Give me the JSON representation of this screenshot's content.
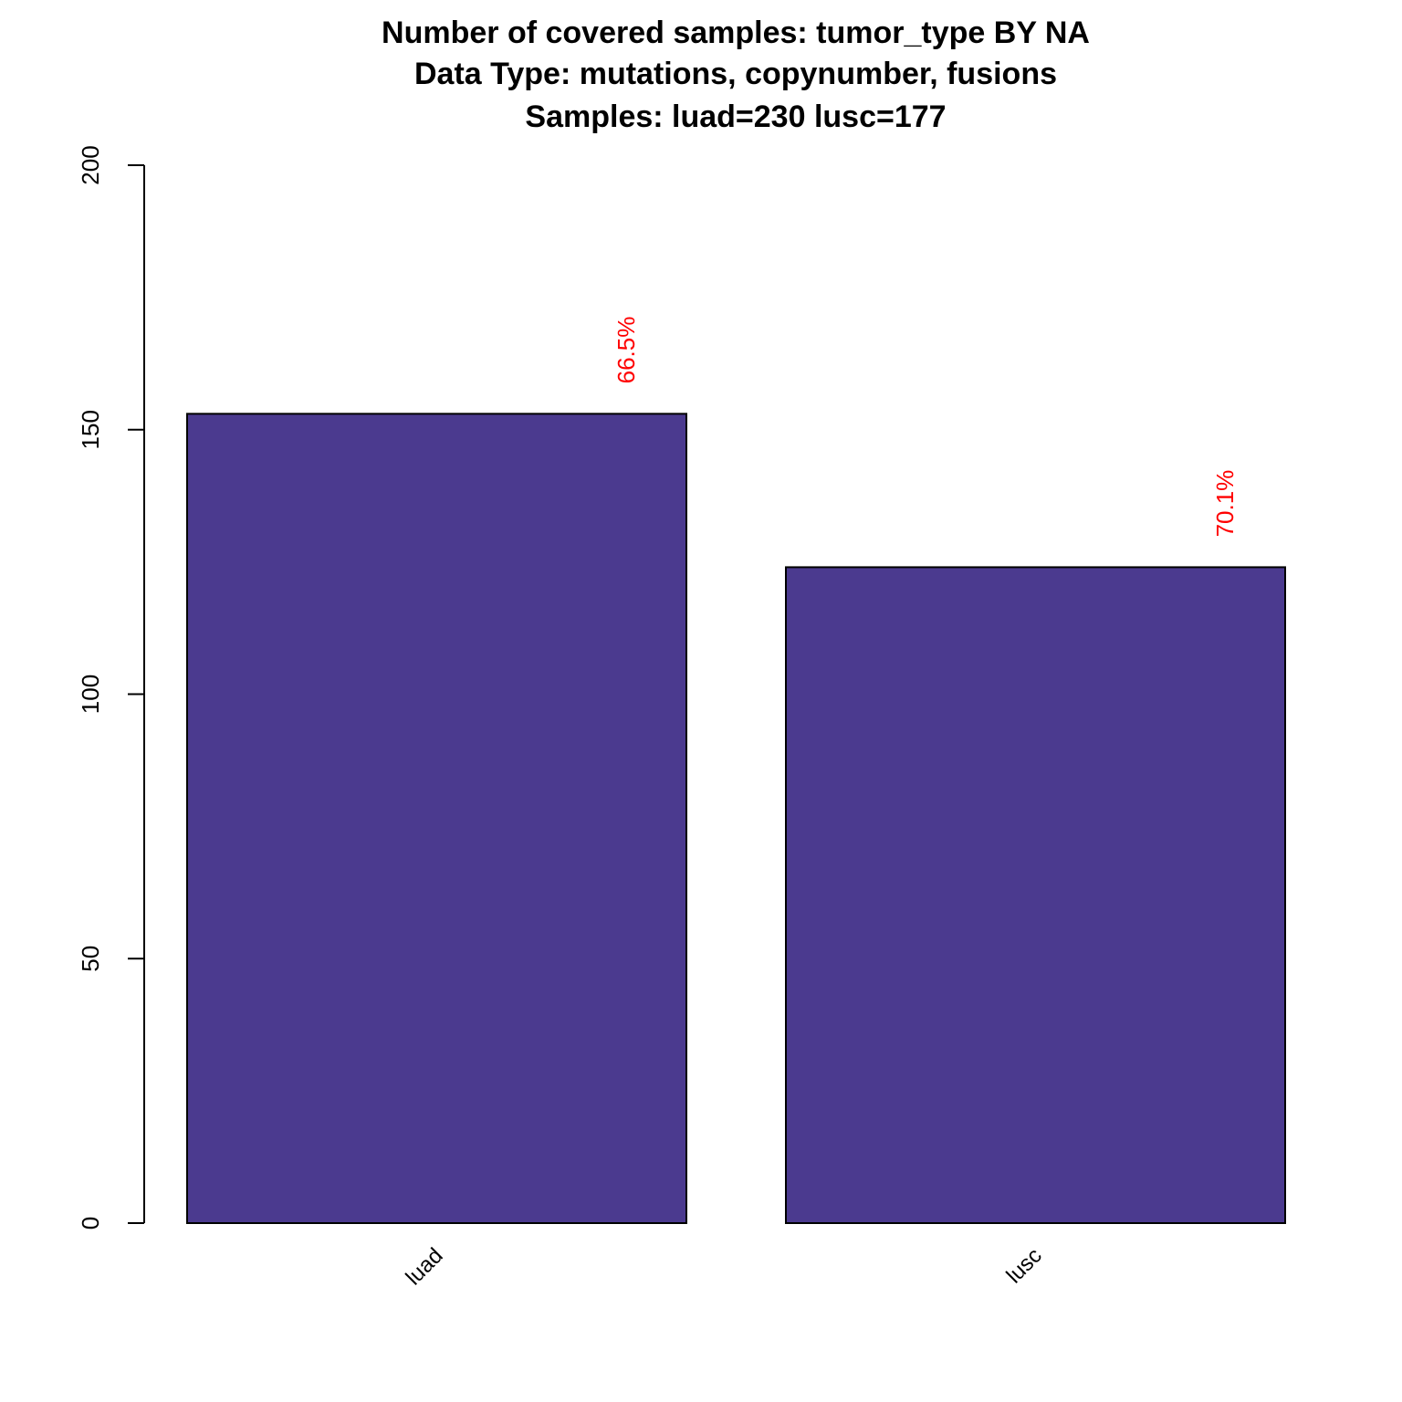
{
  "chart_data": {
    "type": "bar",
    "title_lines": [
      "Number of covered samples: tumor_type BY NA",
      "Data Type: mutations, copynumber, fusions",
      "Samples: luad=230 lusc=177"
    ],
    "categories": [
      "luad",
      "lusc"
    ],
    "values": [
      153,
      124
    ],
    "annotations": [
      "66.5%",
      "70.1%"
    ],
    "ylim": [
      0,
      200
    ],
    "y_ticks": [
      0,
      50,
      100,
      150,
      200
    ],
    "xlabel": "",
    "ylabel": "",
    "grid": false,
    "legend": "none",
    "bar_color": "#4b3a8f",
    "annotation_color": "#ff0000"
  }
}
